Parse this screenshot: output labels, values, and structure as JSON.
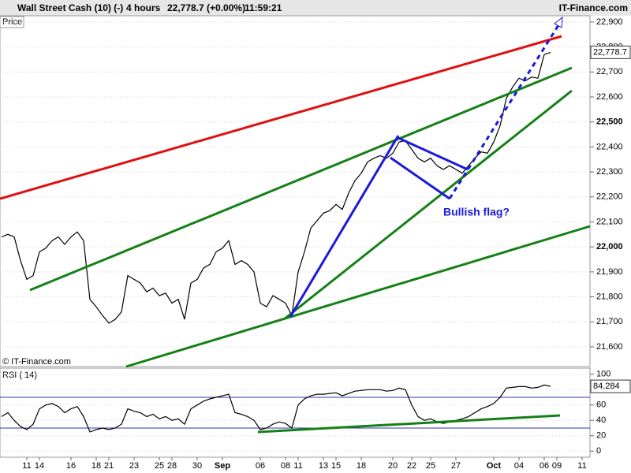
{
  "header": {
    "title": "Wall Street Cash (10) (-)",
    "timeframe": "4 hours",
    "quote": "22,778.7 (+0.00%)",
    "time": "11:59:21",
    "site": "IT-Finance.com"
  },
  "chart_data": [
    {
      "type": "line",
      "panel_label": "Price",
      "watermark": "© IT-Finance.com",
      "annotation": "Bullish flag?",
      "last_label": "22,778.7",
      "color": "#000000",
      "grid": true,
      "categories": [
        null,
        null,
        null,
        null,
        "11",
        null,
        "14",
        null,
        null,
        null,
        null,
        "16",
        null,
        null,
        null,
        "18",
        null,
        "21",
        null,
        null,
        null,
        "23",
        null,
        null,
        null,
        "25",
        null,
        "28",
        null,
        null,
        null,
        "30",
        null,
        null,
        null,
        "Sep",
        null,
        null,
        null,
        null,
        null,
        "06",
        null,
        null,
        null,
        "08",
        null,
        "11",
        null,
        null,
        null,
        "13",
        null,
        "15",
        null,
        null,
        null,
        "18",
        null,
        null,
        null,
        null,
        "20",
        null,
        null,
        "22",
        null,
        null,
        "25",
        null,
        null,
        null,
        "27",
        null,
        null,
        null,
        null,
        null,
        "Oct",
        null,
        null,
        null,
        "04",
        null,
        null,
        null,
        "06",
        null,
        "09",
        null,
        null,
        null,
        "11",
        null
      ],
      "values": [
        22040,
        22050,
        22040,
        21945,
        21870,
        21885,
        21980,
        21995,
        22025,
        22040,
        22010,
        22040,
        22060,
        22025,
        21790,
        21760,
        21725,
        21695,
        21710,
        21740,
        21885,
        21870,
        21855,
        21820,
        21835,
        21805,
        21815,
        21775,
        21790,
        21710,
        21855,
        21870,
        21915,
        21930,
        21980,
        21995,
        22025,
        21930,
        21945,
        21930,
        21900,
        21775,
        21760,
        21805,
        21790,
        21775,
        21725,
        21900,
        21980,
        22075,
        22105,
        22135,
        22145,
        22170,
        22150,
        22215,
        22265,
        22295,
        22340,
        22355,
        22365,
        22355,
        22375,
        22420,
        22425,
        22390,
        22355,
        22340,
        22355,
        22325,
        22310,
        22325,
        22310,
        22295,
        22325,
        22355,
        22380,
        22375,
        22420,
        22485,
        22595,
        22640,
        22675,
        22665,
        22680,
        22675,
        22770,
        22778.7,
        null,
        null,
        null,
        null,
        null,
        null
      ],
      "ylim": [
        21521,
        22925
      ],
      "yticks": [
        {
          "value": 21600,
          "label": "21,600"
        },
        {
          "value": 21700,
          "label": "21,700"
        },
        {
          "value": 21800,
          "label": "21,800"
        },
        {
          "value": 21900,
          "label": "21,900"
        },
        {
          "value": 22000,
          "label": "22,000"
        },
        {
          "value": 22100,
          "label": "22,100"
        },
        {
          "value": 22200,
          "label": "22,200"
        },
        {
          "value": 22300,
          "label": "22,300"
        },
        {
          "value": 22400,
          "label": "22,400"
        },
        {
          "value": 22500,
          "label": "22,500"
        },
        {
          "value": 22600,
          "label": "22,600"
        },
        {
          "value": 22700,
          "label": "22,700"
        },
        {
          "value": 22800,
          "label": "22,800"
        },
        {
          "value": 22900,
          "label": "22,900"
        }
      ]
    },
    {
      "type": "line",
      "panel_label": "RSI ( 14)",
      "color": "#000000",
      "ref_lines": [
        70,
        30
      ],
      "ref_color": "#3333aa",
      "grid": true,
      "values": [
        45,
        50,
        40,
        32,
        28,
        35,
        55,
        60,
        62,
        58,
        50,
        55,
        58,
        45,
        25,
        28,
        30,
        28,
        30,
        35,
        55,
        52,
        50,
        45,
        48,
        42,
        45,
        40,
        42,
        35,
        55,
        60,
        65,
        68,
        70,
        72,
        74,
        50,
        48,
        45,
        40,
        28,
        30,
        35,
        38,
        36,
        30,
        60,
        68,
        72,
        74,
        74,
        75,
        76,
        72,
        75,
        78,
        79,
        80,
        80,
        80,
        78,
        79,
        82,
        80,
        60,
        45,
        40,
        42,
        38,
        36,
        38,
        40,
        42,
        45,
        50,
        55,
        58,
        62,
        70,
        82,
        83,
        84,
        84,
        82,
        83,
        86,
        84.284,
        null,
        null,
        null,
        null,
        null,
        null
      ],
      "ylim": [
        -8,
        108
      ],
      "yticks": [
        0,
        20,
        40,
        60,
        80,
        100
      ]
    }
  ]
}
